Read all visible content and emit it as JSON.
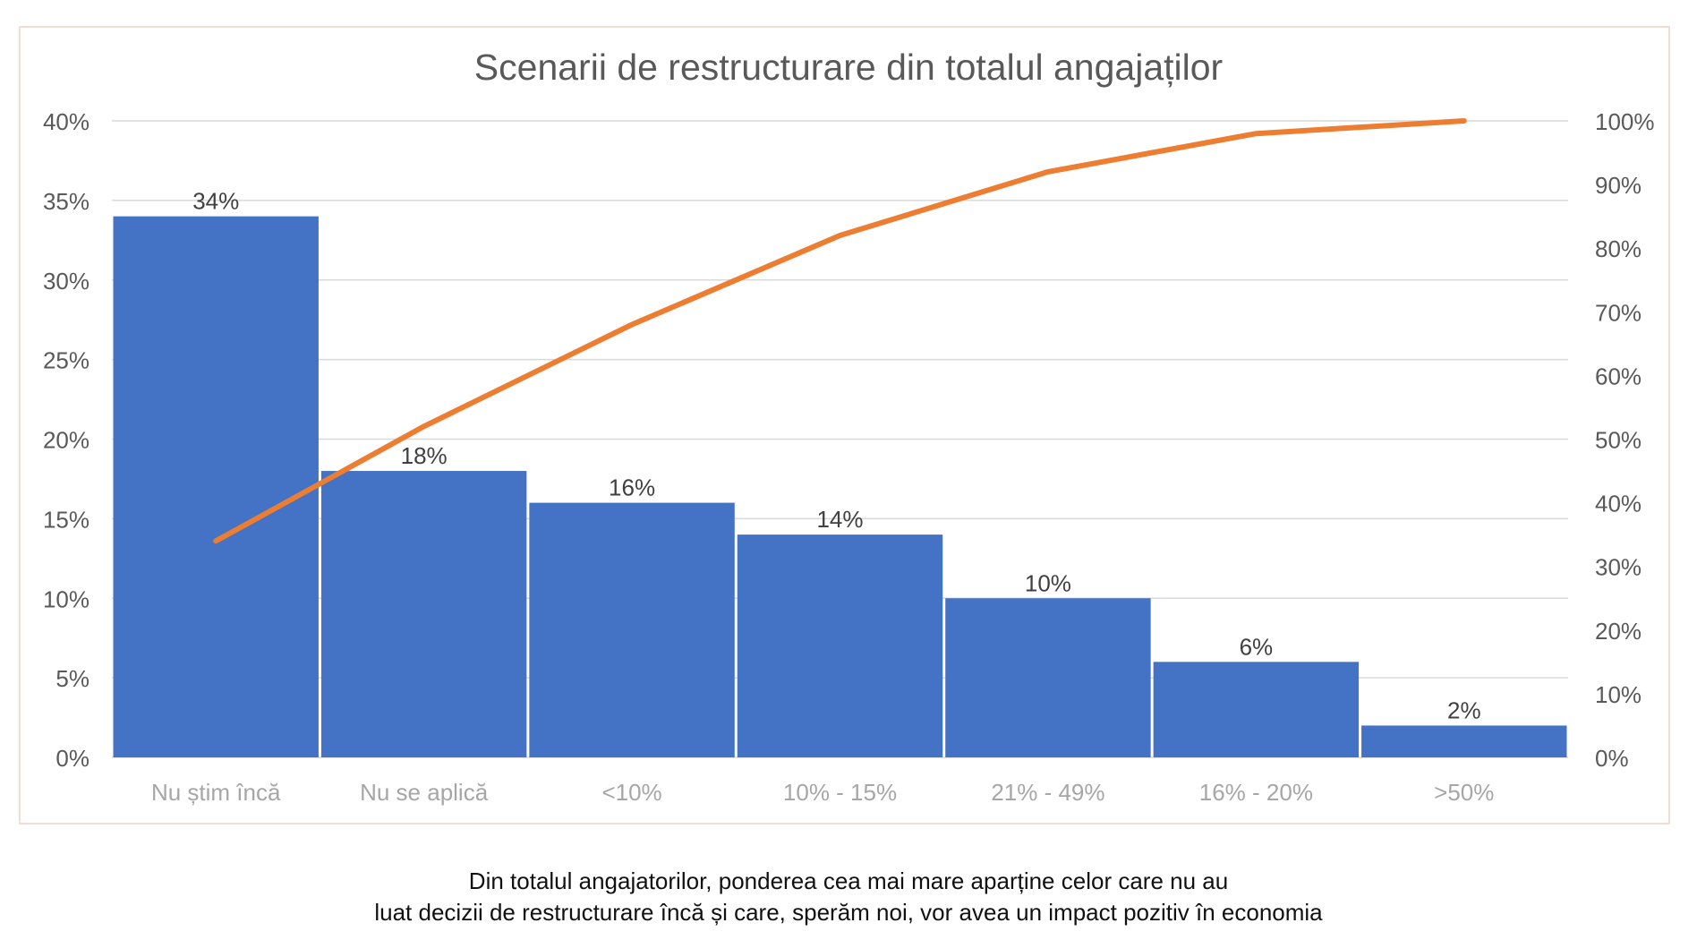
{
  "chart_data": {
    "type": "bar",
    "title": "Scenarii de restructurare din totalul angajaților",
    "categories": [
      "Nu știm încă",
      "Nu se aplică",
      "<10%",
      "10% - 15%",
      "21% - 49%",
      "16% - 20%",
      ">50%"
    ],
    "series": [
      {
        "values": [
          34,
          18,
          16,
          14,
          10,
          6,
          2
        ],
        "color": "#4472c4"
      },
      {
        "values": [
          34,
          52,
          68,
          82,
          92,
          98,
          100
        ],
        "color": "#ed7d31",
        "axis": "right",
        "kind": "line"
      }
    ],
    "data_labels": [
      "34%",
      "18%",
      "16%",
      "14%",
      "10%",
      "6%",
      "2%"
    ],
    "ylim": [
      0,
      40
    ],
    "y_ticks": [
      "0%",
      "5%",
      "10%",
      "15%",
      "20%",
      "25%",
      "30%",
      "35%",
      "40%"
    ],
    "y2lim": [
      0,
      100
    ],
    "y2_ticks": [
      "0%",
      "10%",
      "20%",
      "30%",
      "40%",
      "50%",
      "60%",
      "70%",
      "80%",
      "90%",
      "100%"
    ],
    "grid": true,
    "legend": "none"
  },
  "caption": {
    "line1": "Din totalul angajatorilor, ponderea cea mai mare aparține celor care nu au",
    "line2": "luat decizii de restructurare încă și care, sperăm noi, vor avea un impact pozitiv în economia"
  }
}
